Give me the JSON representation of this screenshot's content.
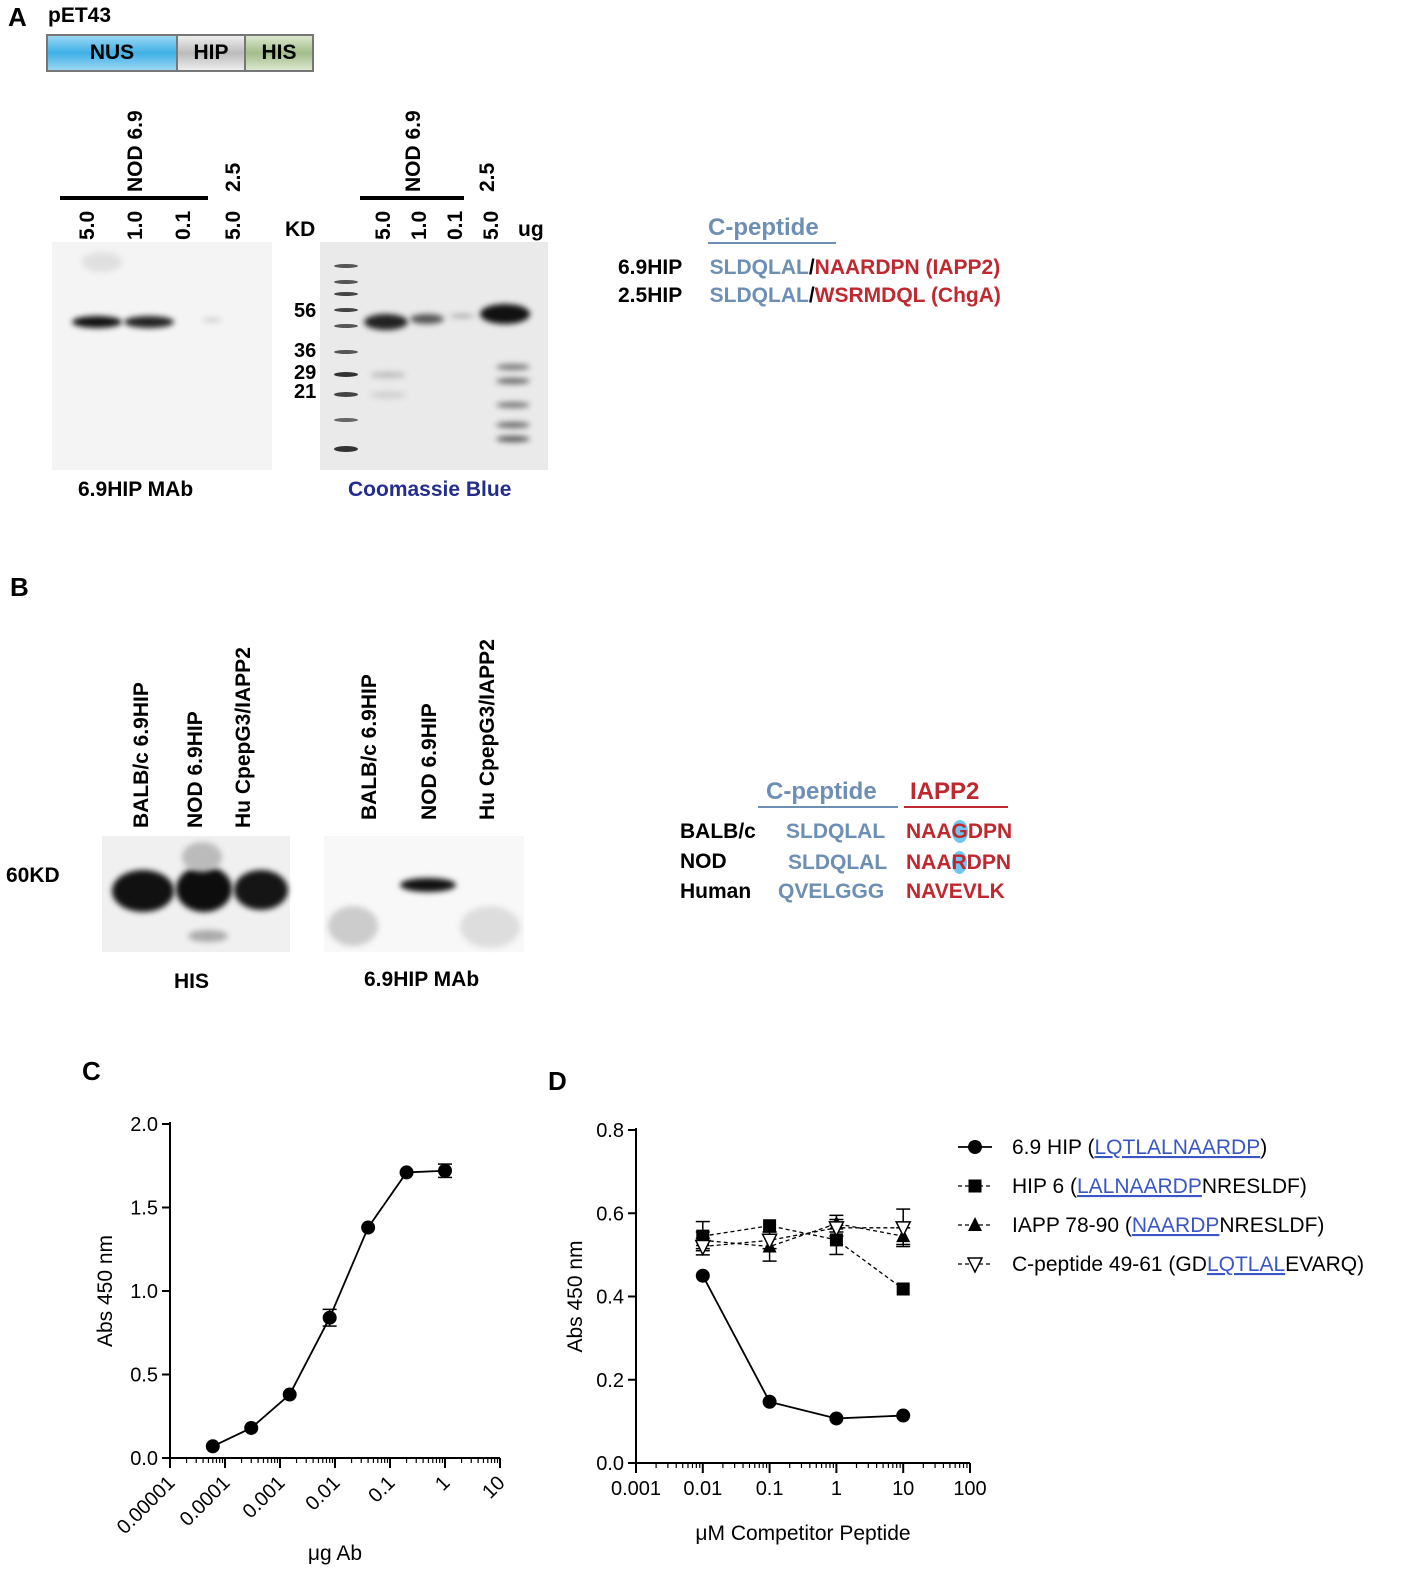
{
  "panelA": {
    "letter": "A",
    "construct": {
      "name": "pET43",
      "segments": [
        "NUS",
        "HIP",
        "HIS"
      ]
    },
    "blot1": {
      "group_label": "NOD 6.9",
      "lanes": [
        "5.0",
        "1.0",
        "0.1",
        "5.0"
      ],
      "extra_label": "2.5",
      "caption": "6.9HIP MAb"
    },
    "blot2": {
      "kd_label": "KD",
      "group_label": "NOD 6.9",
      "lanes": [
        "5.0",
        "1.0",
        "0.1",
        "5.0"
      ],
      "extra_label": "2.5",
      "unit": "ug",
      "markers": [
        "56",
        "36",
        "29",
        "21"
      ],
      "caption": "Coomassie Blue"
    },
    "sequences": {
      "header": "C-peptide",
      "rows": [
        {
          "name": "6.9HIP",
          "cpep": "SLDQLAL",
          "sep": "/",
          "other": "NAARDPN (IAPP2)"
        },
        {
          "name": "2.5HIP",
          "cpep": "SLDQLAL",
          "sep": "/",
          "other": "WSRMDQL (ChgA)"
        }
      ]
    }
  },
  "panelB": {
    "letter": "B",
    "kd_label": "60KD",
    "blot1": {
      "lanes": [
        "BALB/c 6.9HIP",
        "NOD 6.9HIP",
        "Hu CpepG3/IAPP2"
      ],
      "caption": "HIS"
    },
    "blot2": {
      "lanes": [
        "BALB/c 6.9HIP",
        "NOD 6.9HIP",
        "Hu CpepG3/IAPP2"
      ],
      "caption": "6.9HIP MAb"
    },
    "alignment": {
      "header_cpep": "C-peptide",
      "header_iapp": "IAPP2",
      "rows": [
        {
          "name": "BALB/c",
          "cpep": "SLDQLAL",
          "iapp_a": "NAA",
          "iapp_b": "G",
          "iapp_c": "DPN"
        },
        {
          "name": "NOD",
          "cpep": "SLDQLAL",
          "iapp_a": "NAA",
          "iapp_b": "R",
          "iapp_c": "DPN"
        },
        {
          "name": "Human",
          "cpep": "QVELGGG",
          "iapp_a": "NAVEVLK",
          "iapp_b": "",
          "iapp_c": ""
        }
      ]
    }
  },
  "chart_data": [
    {
      "panel": "C",
      "type": "line",
      "xscale": "log",
      "xlabel": "μg Ab",
      "ylabel": "Abs 450 nm",
      "xlim": [
        1e-05,
        10
      ],
      "ylim": [
        0,
        2.0
      ],
      "x_ticks": [
        "0.00001",
        "0.0001",
        "0.001",
        "0.01",
        "0.1",
        "1",
        "10"
      ],
      "y_ticks": [
        "0.0",
        "0.5",
        "1.0",
        "1.5",
        "2.0"
      ],
      "series": [
        {
          "marker": "circle",
          "points": [
            {
              "x": 6e-05,
              "y": 0.07,
              "err": 0
            },
            {
              "x": 0.0003,
              "y": 0.18,
              "err": 0
            },
            {
              "x": 0.0015,
              "y": 0.38,
              "err": 0
            },
            {
              "x": 0.008,
              "y": 0.84,
              "err": 0.05
            },
            {
              "x": 0.04,
              "y": 1.38,
              "err": 0
            },
            {
              "x": 0.2,
              "y": 1.71,
              "err": 0
            },
            {
              "x": 1,
              "y": 1.72,
              "err": 0.04
            }
          ]
        }
      ]
    },
    {
      "panel": "D",
      "type": "line",
      "xscale": "log",
      "xlabel": "μM Competitor Peptide",
      "ylabel": "Abs 450 nm",
      "xlim": [
        0.001,
        100
      ],
      "ylim": [
        0,
        0.8
      ],
      "x_ticks": [
        "0.001",
        "0.01",
        "0.1",
        "1",
        "10",
        "100"
      ],
      "y_ticks": [
        "0.0",
        "0.2",
        "0.4",
        "0.6",
        "0.8"
      ],
      "series": [
        {
          "name_prefix": "6.9 HIP (",
          "name_hl": "LQTLALNAARDP",
          "name_suffix": ")",
          "name_pre_hl": "",
          "marker": "circle",
          "dashed": false,
          "points": [
            {
              "x": 0.01,
              "y": 0.45,
              "err": 0
            },
            {
              "x": 0.1,
              "y": 0.147,
              "err": 0
            },
            {
              "x": 1,
              "y": 0.107,
              "err": 0
            },
            {
              "x": 10,
              "y": 0.114,
              "err": 0
            }
          ]
        },
        {
          "name_prefix": "HIP 6 (",
          "name_hl": "LALNAARDP",
          "name_suffix": "NRESLDF)",
          "name_pre_hl": "",
          "marker": "square",
          "dashed": true,
          "points": [
            {
              "x": 0.01,
              "y": 0.545,
              "err": 0.035
            },
            {
              "x": 0.1,
              "y": 0.57,
              "err": 0
            },
            {
              "x": 1,
              "y": 0.536,
              "err": 0.035
            },
            {
              "x": 10,
              "y": 0.418,
              "err": 0
            }
          ]
        },
        {
          "name_prefix": "IAPP 78-90 (",
          "name_hl": "NAARDP",
          "name_suffix": "NRESLDF)",
          "name_pre_hl": "",
          "marker": "triangle-up",
          "dashed": true,
          "points": [
            {
              "x": 0.01,
              "y": 0.535,
              "err": 0.02
            },
            {
              "x": 0.1,
              "y": 0.52,
              "err": 0.035
            },
            {
              "x": 1,
              "y": 0.575,
              "err": 0.02
            },
            {
              "x": 10,
              "y": 0.545,
              "err": 0.02
            }
          ]
        },
        {
          "name_prefix": "C-peptide 49-61 (",
          "name_pre_hl": "GD",
          "name_hl": "LQTLAL",
          "name_suffix": "EVARQ)",
          "marker": "triangle-down-open",
          "dashed": true,
          "points": [
            {
              "x": 0.01,
              "y": 0.52,
              "err": 0.02
            },
            {
              "x": 0.1,
              "y": 0.535,
              "err": 0.02
            },
            {
              "x": 1,
              "y": 0.565,
              "err": 0.02
            },
            {
              "x": 10,
              "y": 0.565,
              "err": 0.045
            }
          ]
        }
      ]
    }
  ]
}
